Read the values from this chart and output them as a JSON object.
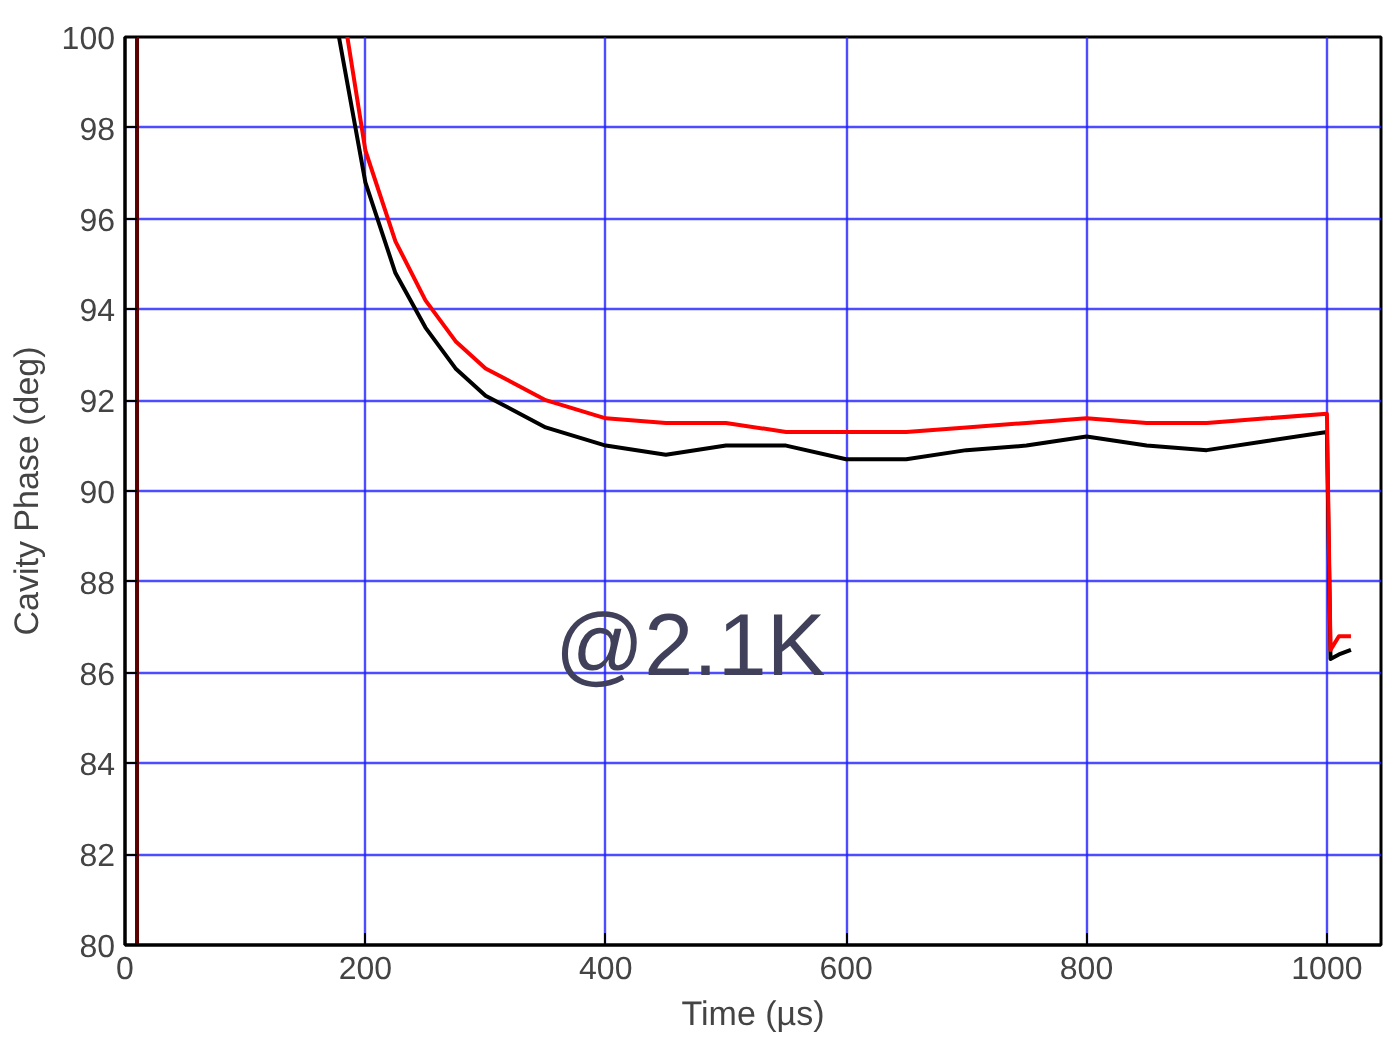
{
  "chart_data": {
    "type": "line",
    "xlabel": "Time (µs)",
    "ylabel": "Cavity Phase (deg)",
    "xlim": [
      0,
      1045
    ],
    "ylim": [
      80,
      100
    ],
    "xticks": [
      0,
      200,
      400,
      600,
      800,
      1000
    ],
    "yticks": [
      80,
      82,
      84,
      86,
      88,
      90,
      92,
      94,
      96,
      98,
      100
    ],
    "grid": true,
    "line_style": "solid",
    "marker": "none",
    "annotations": [
      "@2.1K"
    ],
    "series": [
      {
        "color": "#5a0000",
        "x": [
          10,
          10
        ],
        "values": [
          80,
          100
        ]
      },
      {
        "color": "#000000",
        "x": [
          178,
          200,
          225,
          250,
          275,
          300,
          350,
          400,
          450,
          500,
          550,
          600,
          650,
          700,
          750,
          800,
          850,
          900,
          950,
          1000,
          1003,
          1010,
          1020
        ],
        "values": [
          100,
          96.8,
          94.8,
          93.6,
          92.7,
          92.1,
          91.4,
          91.0,
          90.8,
          91.0,
          91.0,
          90.7,
          90.7,
          90.9,
          91.0,
          91.2,
          91.0,
          90.9,
          91.1,
          91.3,
          86.3,
          86.4,
          86.5
        ]
      },
      {
        "color": "#ff0000",
        "x": [
          185,
          200,
          225,
          250,
          275,
          300,
          350,
          400,
          450,
          500,
          550,
          600,
          650,
          700,
          750,
          800,
          850,
          900,
          950,
          1000,
          1003,
          1010,
          1020
        ],
        "values": [
          100,
          97.5,
          95.5,
          94.2,
          93.3,
          92.7,
          92.0,
          91.6,
          91.5,
          91.5,
          91.3,
          91.3,
          91.3,
          91.4,
          91.5,
          91.6,
          91.5,
          91.5,
          91.6,
          91.7,
          86.5,
          86.8,
          86.8
        ]
      }
    ]
  }
}
